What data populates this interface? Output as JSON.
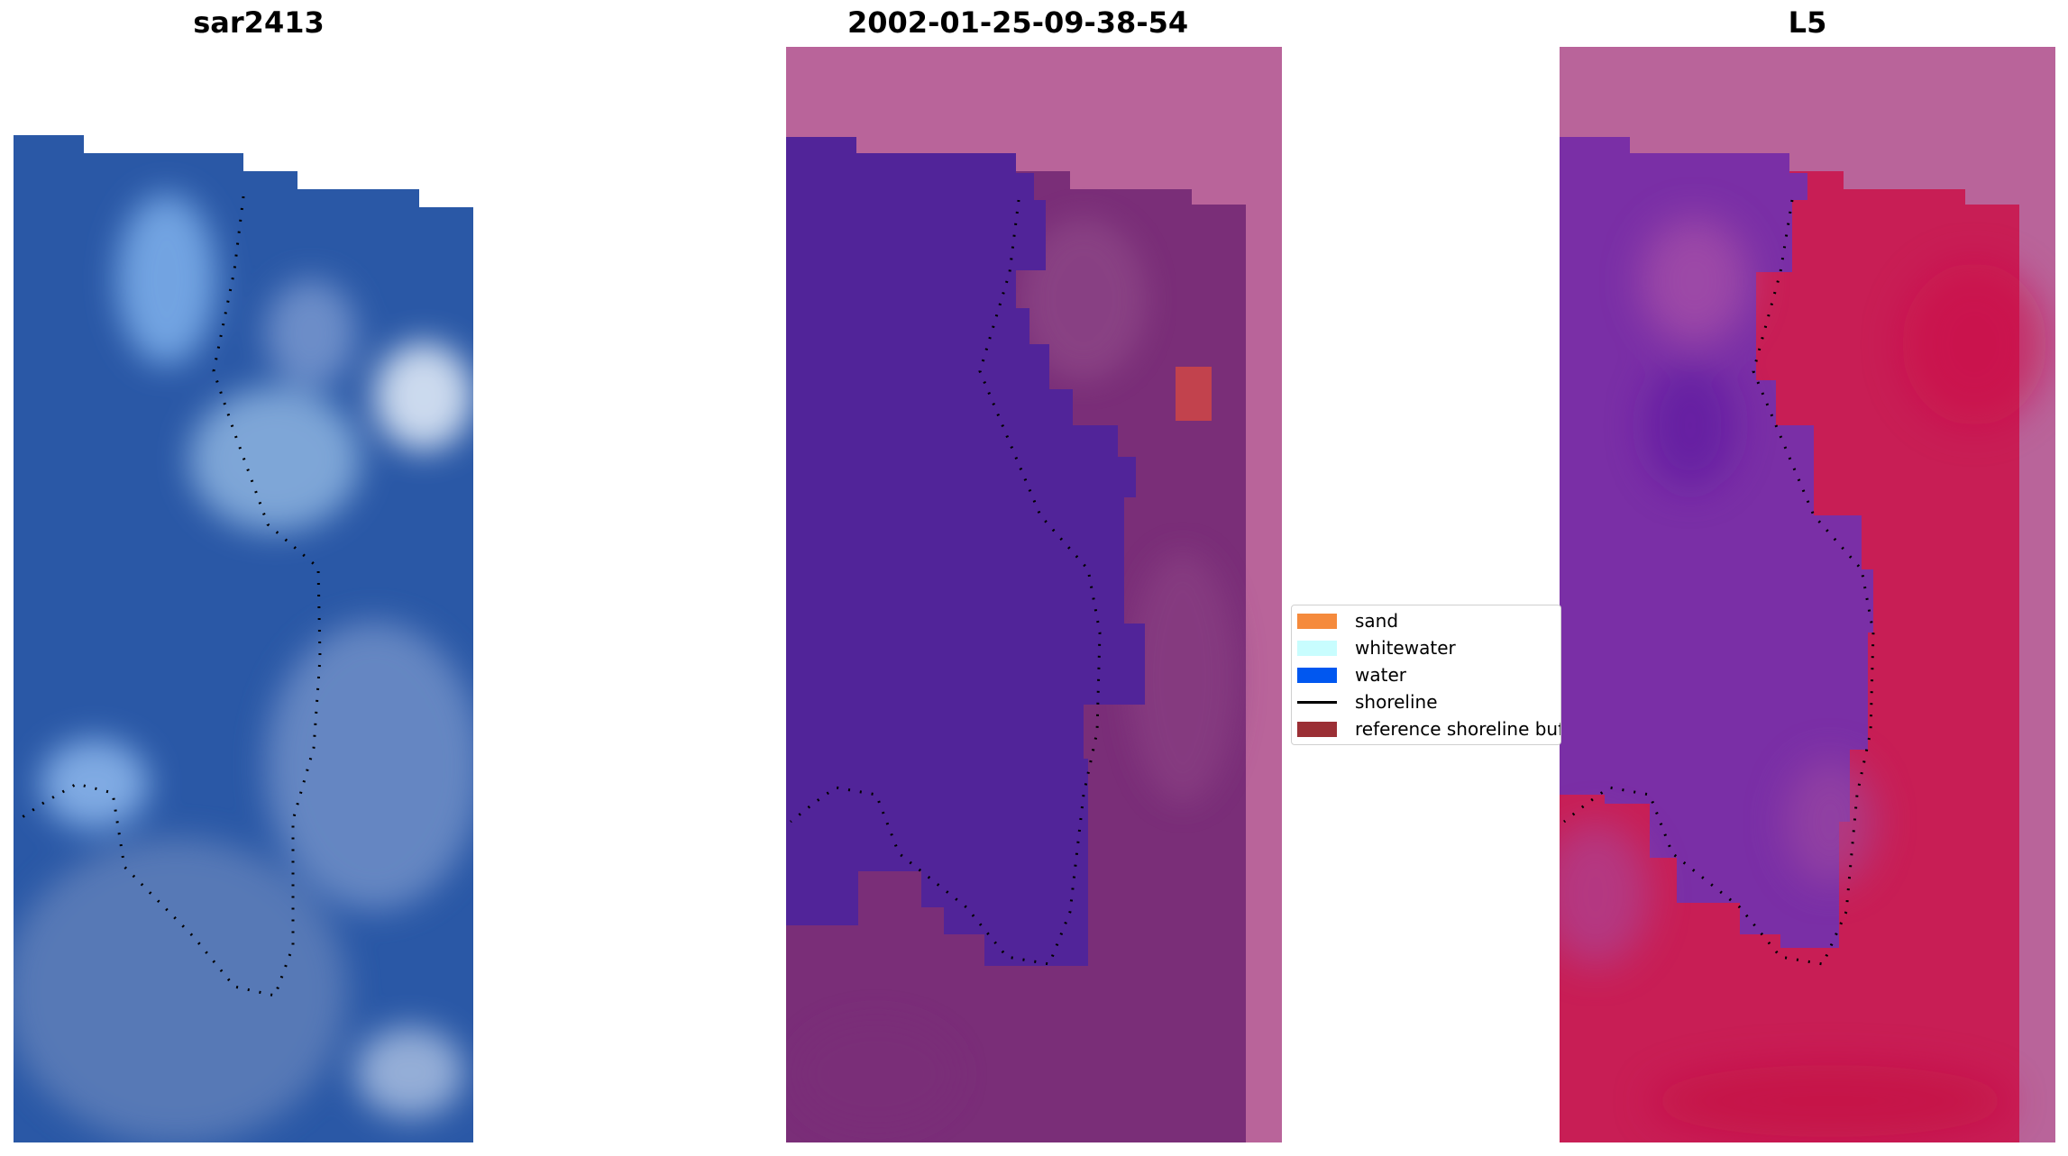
{
  "panels": [
    {
      "title": "sar2413"
    },
    {
      "title": "2002-01-25-09-38-54"
    },
    {
      "title": "L5"
    }
  ],
  "legend": {
    "items": [
      {
        "label": "sand",
        "color": "#f58a3c",
        "kind": "patch"
      },
      {
        "label": "whitewater",
        "color": "#c8fdfe",
        "kind": "patch"
      },
      {
        "label": "water",
        "color": "#0057f0",
        "kind": "patch"
      },
      {
        "label": "shoreline",
        "color": "#000000",
        "kind": "line"
      },
      {
        "label": "reference shoreline buffer",
        "color": "#9b2f35",
        "kind": "patch"
      }
    ]
  },
  "colors": {
    "rgb_water": "#2456a6",
    "rgb_foam": "#9fc4ee",
    "class_overlay_bg": "#b9649a",
    "class_water": "#512499",
    "class_land": "#7a2e78",
    "class_ref_buffer": "#c2424d",
    "index_water": "#7a2fa6",
    "index_land": "#c81e55",
    "shoreline_dots": "#000000"
  }
}
